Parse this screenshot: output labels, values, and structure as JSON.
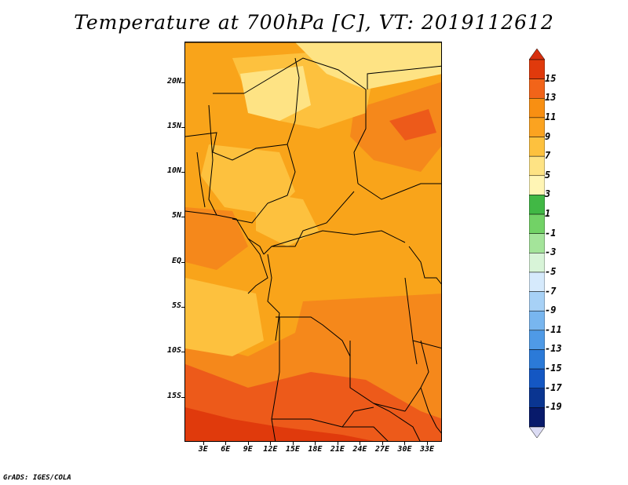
{
  "title": "Temperature at 700hPa [C], VT: 2019112612",
  "footer": "GrADS: IGES/COLA",
  "axes": {
    "lat_labels": [
      "20N",
      "15N",
      "10N",
      "5N",
      "EQ",
      "5S",
      "10S",
      "15S"
    ],
    "lat_values": [
      20,
      15,
      10,
      5,
      0,
      -5,
      -10,
      -15
    ],
    "lon_labels": [
      "3E",
      "6E",
      "9E",
      "12E",
      "15E",
      "18E",
      "21E",
      "24E",
      "27E",
      "30E",
      "33E"
    ],
    "lon_values": [
      3,
      6,
      9,
      12,
      15,
      18,
      21,
      24,
      27,
      30,
      33
    ],
    "lat_range": [
      -20,
      24.5
    ],
    "lon_range": [
      0.5,
      35
    ]
  },
  "colorbar": {
    "labels": [
      "15",
      "13",
      "11",
      "9",
      "7",
      "5",
      "3",
      "1",
      "-1",
      "-3",
      "-5",
      "-7",
      "-9",
      "-11",
      "-13",
      "-15",
      "-17",
      "-19"
    ],
    "colors": [
      "#e03a0c",
      "#f26419",
      "#f88f12",
      "#fba320",
      "#fdc13e",
      "#fee384",
      "#fff5b5",
      "#41b845",
      "#72d266",
      "#a4e49a",
      "#d8f4d8",
      "#d6eafc",
      "#a7d1f6",
      "#78b6ef",
      "#4f9ae6",
      "#2b7ad8",
      "#1457c3",
      "#0a3591",
      "#081a6b"
    ],
    "top_color": "#d72f0e",
    "bottom_color": "#dcdcf4"
  },
  "map_colors": {
    "c5": "#fee384",
    "c7": "#fdc13e",
    "c9": "#f9a41a",
    "c11": "#f5881b",
    "c13": "#ed5a1a",
    "c15": "#e03a0c",
    "border": "#000000"
  }
}
